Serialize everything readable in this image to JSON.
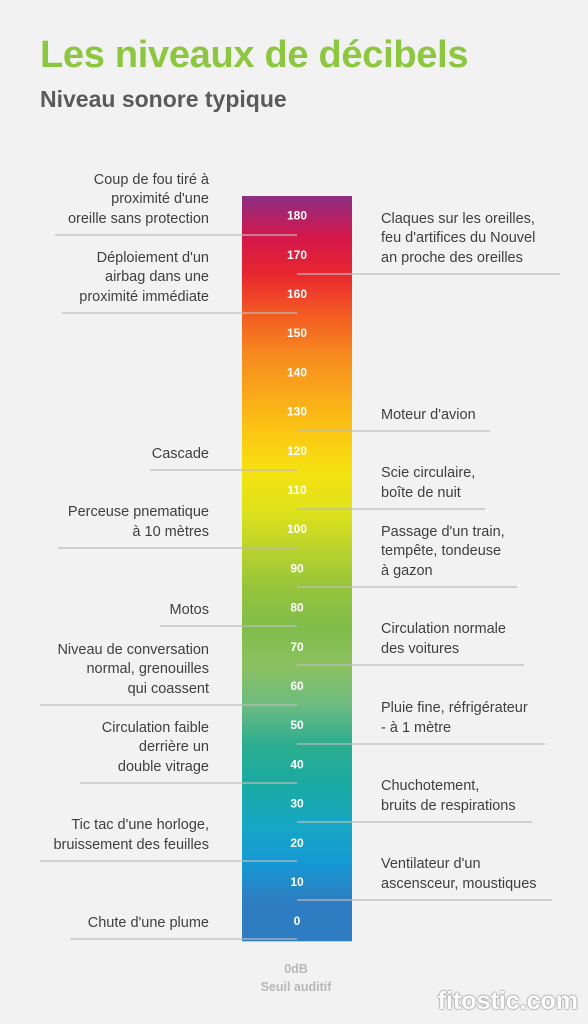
{
  "header": {
    "title": "Les niveaux de décibels",
    "subtitle": "Niveau sonore typique"
  },
  "scale": {
    "levels": [
      {
        "db": 180,
        "color": "#8b2f83"
      },
      {
        "db": 170,
        "color": "#d3174d"
      },
      {
        "db": 160,
        "color": "#e8262e"
      },
      {
        "db": 150,
        "color": "#f35a23"
      },
      {
        "db": 140,
        "color": "#f6881f"
      },
      {
        "db": 130,
        "color": "#f9a71a"
      },
      {
        "db": 120,
        "color": "#fbc613"
      },
      {
        "db": 110,
        "color": "#f6e211"
      },
      {
        "db": 100,
        "color": "#dfe21a"
      },
      {
        "db": 90,
        "color": "#bbd32c"
      },
      {
        "db": 80,
        "color": "#95c43b"
      },
      {
        "db": 70,
        "color": "#7fbd4a"
      },
      {
        "db": 60,
        "color": "#8cc161"
      },
      {
        "db": 50,
        "color": "#6cbb82"
      },
      {
        "db": 40,
        "color": "#2bad8f"
      },
      {
        "db": 30,
        "color": "#1aaaa2"
      },
      {
        "db": 20,
        "color": "#16a8c4"
      },
      {
        "db": 10,
        "color": "#1599d4"
      },
      {
        "db": 0,
        "color": "#2e7cc1"
      }
    ]
  },
  "left_labels": [
    {
      "db": 180,
      "text": "Coup de fou tiré à\nproximité d'une\noreille sans protection"
    },
    {
      "db": 160,
      "text": "Déploiement d'un\nairbag dans une\nproximité immédiate"
    },
    {
      "db": 120,
      "text": "Cascade"
    },
    {
      "db": 100,
      "text": "Perceuse pnematique\nà 10 mètres"
    },
    {
      "db": 80,
      "text": "Motos"
    },
    {
      "db": 60,
      "text": "Niveau de conversation\nnormal, grenouilles\nqui coassent"
    },
    {
      "db": 40,
      "text": "Circulation faible\nderrière un\ndouble vitrage"
    },
    {
      "db": 20,
      "text": "Tic tac d'une horloge,\nbruissement des feuilles"
    },
    {
      "db": 0,
      "text": "Chute d'une plume"
    }
  ],
  "right_labels": [
    {
      "db": 170,
      "text": "Claques sur les oreilles,\nfeu d'artifices du Nouvel\nan proche des oreilles"
    },
    {
      "db": 130,
      "text": "Moteur d'avion"
    },
    {
      "db": 110,
      "text": "Scie circulaire,\nboîte de nuit"
    },
    {
      "db": 90,
      "text": "Passage d'un train,\ntempête, tondeuse\nà gazon"
    },
    {
      "db": 70,
      "text": "Circulation normale\ndes voitures"
    },
    {
      "db": 50,
      "text": "Pluie fine, réfrigérateur\n- à 1 mètre"
    },
    {
      "db": 30,
      "text": "Chuchotement,\nbruits de respirations"
    },
    {
      "db": 10,
      "text": "Ventilateur d'un\nascensceur, moustiques"
    }
  ],
  "footer": {
    "db_label": "0dB",
    "threshold_label": "Seuil auditif"
  },
  "watermark": "fitostic.com"
}
